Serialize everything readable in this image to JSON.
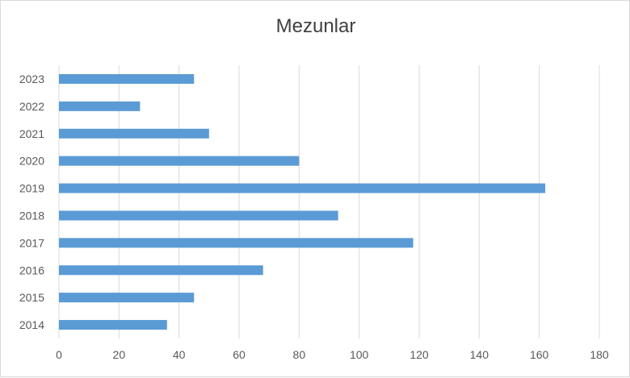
{
  "chart_data": {
    "type": "bar",
    "orientation": "horizontal",
    "title": "Mezunlar",
    "xlabel": "",
    "ylabel": "",
    "categories": [
      "2014",
      "2015",
      "2016",
      "2017",
      "2018",
      "2019",
      "2020",
      "2021",
      "2022",
      "2023"
    ],
    "values": [
      36,
      45,
      68,
      118,
      93,
      162,
      80,
      50,
      27,
      45
    ],
    "xlim": [
      0,
      180
    ],
    "xticks": [
      "0",
      "20",
      "40",
      "60",
      "80",
      "100",
      "120",
      "140",
      "160",
      "180"
    ],
    "grid": "vertical",
    "legend": "none",
    "bar_color": "#5b9bd5",
    "grid_color": "#d9d9d9"
  }
}
